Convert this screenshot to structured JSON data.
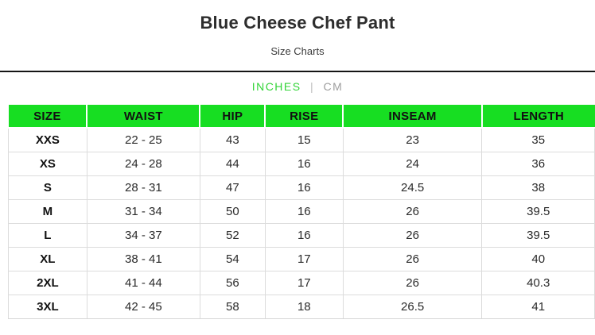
{
  "header": {
    "title": "Blue Cheese Chef Pant",
    "subtitle": "Size Charts"
  },
  "unit_toggle": {
    "inches_label": "INCHES",
    "cm_label": "CM",
    "separator": "|",
    "active_unit": "INCHES"
  },
  "colors": {
    "header_green": "#17de22",
    "active_unit_green": "#32d437",
    "inactive_unit_gray": "#9e9e9e",
    "divider_black": "#141414",
    "cell_border_gray": "#dcdcdc"
  },
  "chart_data": {
    "type": "table",
    "title": "Blue Cheese Chef Pant — Size Chart (inches)",
    "columns": [
      "SIZE",
      "WAIST",
      "HIP",
      "RISE",
      "INSEAM",
      "LENGTH"
    ],
    "rows": [
      [
        "XXS",
        "22 - 25",
        "43",
        "15",
        "23",
        "35"
      ],
      [
        "XS",
        "24 - 28",
        "44",
        "16",
        "24",
        "36"
      ],
      [
        "S",
        "28 - 31",
        "47",
        "16",
        "24.5",
        "38"
      ],
      [
        "M",
        "31 - 34",
        "50",
        "16",
        "26",
        "39.5"
      ],
      [
        "L",
        "34 - 37",
        "52",
        "16",
        "26",
        "39.5"
      ],
      [
        "XL",
        "38 - 41",
        "54",
        "17",
        "26",
        "40"
      ],
      [
        "2XL",
        "41 - 44",
        "56",
        "17",
        "26",
        "40.3"
      ],
      [
        "3XL",
        "42 - 45",
        "58",
        "18",
        "26.5",
        "41"
      ]
    ]
  }
}
